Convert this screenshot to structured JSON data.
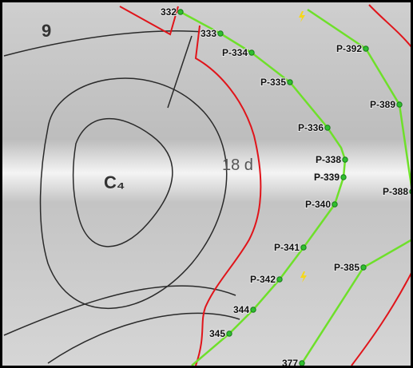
{
  "map": {
    "region_labels": [
      "9",
      "C₄",
      "18 d"
    ],
    "inner_points": [
      "332",
      "333",
      "P-334",
      "P-335",
      "P-336",
      "P-338",
      "P-339",
      "P-340",
      "P-341",
      "P-342",
      "344",
      "345"
    ],
    "outer_points": [
      "P-392",
      "P-389",
      "P-388",
      "P-385",
      "377"
    ]
  }
}
